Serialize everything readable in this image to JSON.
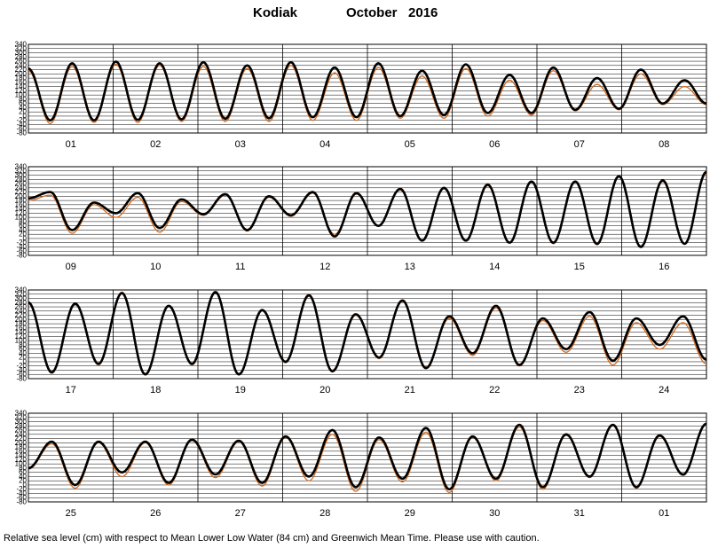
{
  "header": {
    "station": "Kodiak",
    "period": "October   2016"
  },
  "footer": {
    "note": "Relative sea level (cm) with respect to Mean Lower Low Water (84 cm) and Greenwich Mean Time. Please use with caution."
  },
  "colors": {
    "observed": "#000000",
    "predicted": "#d2691e",
    "grid": "#000000",
    "background": "#ffffff"
  },
  "chart_data": {
    "type": "line",
    "title": "Kodiak October 2016",
    "ylabel": "",
    "ylim": [
      -80,
      340
    ],
    "yticks": [
      340,
      320,
      300,
      280,
      260,
      240,
      220,
      200,
      180,
      160,
      140,
      120,
      100,
      80,
      60,
      40,
      20,
      0,
      -20,
      -40,
      -60,
      -80
    ],
    "grid": true,
    "panels": [
      {
        "days": [
          "01",
          "02",
          "03",
          "04",
          "05",
          "06",
          "07",
          "08"
        ],
        "tide_extrema": {
          "observed": [
            225,
            -20,
            250,
            -20,
            258,
            -18,
            250,
            -15,
            255,
            -12,
            240,
            -10,
            255,
            -5,
            230,
            -5,
            250,
            0,
            215,
            5,
            245,
            15,
            195,
            15,
            230,
            30,
            180,
            35,
            220,
            60,
            170,
            60
          ],
          "predicted": [
            215,
            -35,
            235,
            -30,
            245,
            -30,
            240,
            -25,
            235,
            -25,
            225,
            -25,
            240,
            -20,
            205,
            -20,
            230,
            -10,
            190,
            -10,
            225,
            0,
            170,
            5,
            215,
            25,
            150,
            30,
            200,
            55,
            140,
            55
          ]
        }
      },
      {
        "days": [
          "09",
          "10",
          "11",
          "12",
          "13",
          "14",
          "15",
          "16"
        ],
        "tide_extrema": {
          "observed": [
            190,
            220,
            40,
            170,
            120,
            215,
            50,
            185,
            115,
            210,
            40,
            200,
            110,
            220,
            10,
            215,
            60,
            235,
            -10,
            240,
            -10,
            255,
            -20,
            270,
            -20,
            270,
            -25,
            295,
            -40,
            275,
            -25,
            315
          ],
          "predicted": [
            180,
            205,
            25,
            160,
            100,
            195,
            30,
            175,
            110,
            205,
            35,
            195,
            105,
            215,
            20,
            210,
            60,
            230,
            -10,
            235,
            -10,
            250,
            -20,
            265,
            -25,
            265,
            -30,
            290,
            -35,
            270,
            -25,
            305
          ]
        }
      },
      {
        "days": [
          "17",
          "18",
          "19",
          "20",
          "21",
          "22",
          "23",
          "24"
        ],
        "tide_extrema": {
          "observed": [
            280,
            -50,
            275,
            -10,
            325,
            -60,
            265,
            -10,
            330,
            -60,
            245,
            0,
            315,
            -45,
            225,
            20,
            290,
            -30,
            215,
            40,
            265,
            -15,
            205,
            60,
            235,
            5,
            205,
            80,
            215,
            10
          ],
          "predicted": [
            275,
            -55,
            270,
            -15,
            330,
            -55,
            260,
            -15,
            325,
            -55,
            240,
            -5,
            310,
            -40,
            220,
            15,
            285,
            -25,
            205,
            30,
            255,
            -20,
            195,
            45,
            215,
            -15,
            185,
            60,
            185,
            -10
          ]
        }
      },
      {
        "days": [
          "25",
          "26",
          "27",
          "28",
          "29",
          "30",
          "31",
          "01"
        ],
        "tide_extrema": {
          "observed": [
            80,
            205,
            0,
            205,
            60,
            205,
            10,
            215,
            50,
            210,
            10,
            230,
            40,
            260,
            -10,
            225,
            30,
            270,
            -20,
            230,
            30,
            285,
            -10,
            240,
            40,
            285,
            -10,
            235,
            50,
            290
          ],
          "predicted": [
            75,
            195,
            -15,
            200,
            40,
            200,
            0,
            210,
            35,
            205,
            -5,
            225,
            20,
            240,
            -30,
            215,
            15,
            250,
            -35,
            225,
            20,
            275,
            -20,
            235,
            35,
            280,
            -15,
            230,
            45,
            285
          ]
        }
      }
    ]
  }
}
